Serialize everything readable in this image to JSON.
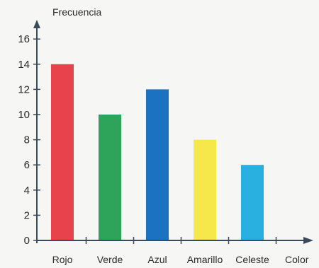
{
  "chart_data": {
    "type": "bar",
    "categories": [
      "Rojo",
      "Verde",
      "Azul",
      "Amarillo",
      "Celeste"
    ],
    "values": [
      14,
      10,
      12,
      8,
      6
    ],
    "colors": [
      "#e8434c",
      "#2ea35a",
      "#1a72c0",
      "#f6e84a",
      "#2ab0e0"
    ],
    "title": "",
    "xlabel": "Color",
    "ylabel": "Frecuencia",
    "ylim": [
      0,
      17
    ],
    "yticks": [
      0,
      2,
      4,
      6,
      8,
      10,
      12,
      14,
      16
    ],
    "grid": false,
    "legend": "none"
  }
}
